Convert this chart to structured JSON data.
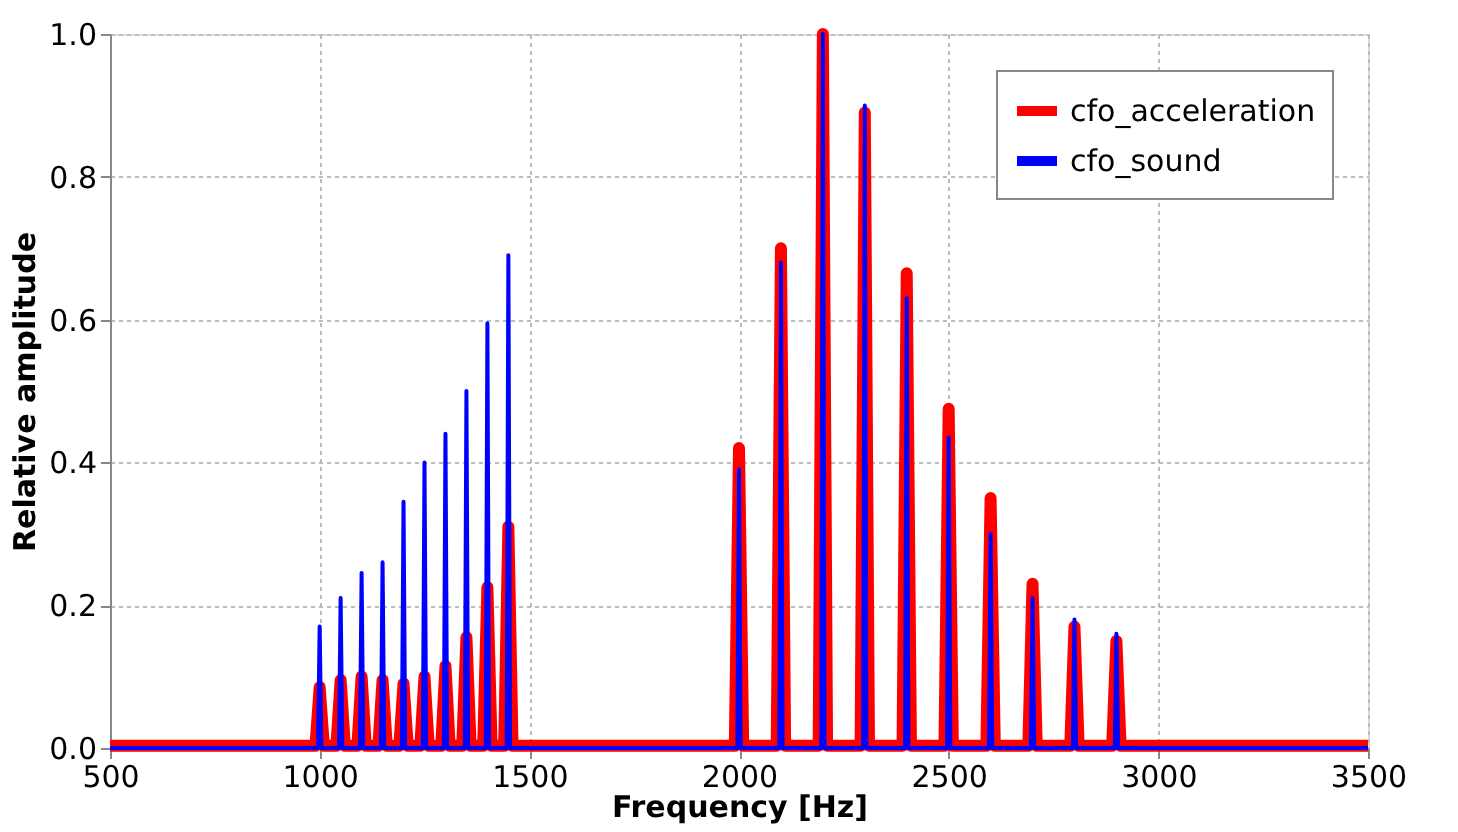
{
  "chart_data": {
    "type": "line",
    "xlabel": "Frequency [Hz]",
    "ylabel": "Relative amplitude",
    "x": [
      500,
      990,
      1000,
      1010,
      1040,
      1050,
      1060,
      1090,
      1100,
      1110,
      1140,
      1150,
      1160,
      1190,
      1200,
      1210,
      1240,
      1250,
      1260,
      1290,
      1300,
      1310,
      1340,
      1350,
      1360,
      1390,
      1400,
      1410,
      1440,
      1450,
      1460,
      1990,
      2000,
      2010,
      2090,
      2100,
      2110,
      2190,
      2200,
      2210,
      2290,
      2300,
      2310,
      2390,
      2400,
      2410,
      2490,
      2500,
      2510,
      2590,
      2600,
      2610,
      2690,
      2700,
      2710,
      2790,
      2800,
      2810,
      2890,
      2900,
      2910,
      3500
    ],
    "series": [
      {
        "name": "cfo_acceleration",
        "color": "#ff0000",
        "values": [
          0.003,
          0.003,
          0.085,
          0.003,
          0.003,
          0.095,
          0.003,
          0.003,
          0.1,
          0.003,
          0.003,
          0.095,
          0.003,
          0.003,
          0.09,
          0.003,
          0.003,
          0.1,
          0.003,
          0.003,
          0.115,
          0.003,
          0.003,
          0.155,
          0.003,
          0.003,
          0.225,
          0.003,
          0.003,
          0.31,
          0.003,
          0.003,
          0.42,
          0.003,
          0.003,
          0.7,
          0.003,
          0.003,
          1.0,
          0.003,
          0.003,
          0.89,
          0.003,
          0.003,
          0.665,
          0.003,
          0.003,
          0.475,
          0.003,
          0.003,
          0.35,
          0.003,
          0.003,
          0.23,
          0.003,
          0.003,
          0.17,
          0.003,
          0.003,
          0.15,
          0.003,
          0.003
        ]
      },
      {
        "name": "cfo_sound",
        "color": "#0000ff",
        "x": [
          500,
          996,
          1000,
          1004,
          1046,
          1050,
          1054,
          1096,
          1100,
          1104,
          1146,
          1150,
          1154,
          1196,
          1200,
          1204,
          1246,
          1250,
          1254,
          1296,
          1300,
          1304,
          1346,
          1350,
          1354,
          1396,
          1400,
          1404,
          1446,
          1450,
          1454,
          1996,
          2000,
          2004,
          2096,
          2100,
          2104,
          2196,
          2200,
          2204,
          2296,
          2300,
          2304,
          2396,
          2400,
          2404,
          2496,
          2500,
          2504,
          2596,
          2600,
          2604,
          2696,
          2700,
          2704,
          2796,
          2800,
          2804,
          2896,
          2900,
          2904,
          3500
        ],
        "values": [
          0.0,
          0.0,
          0.17,
          0.0,
          0.0,
          0.21,
          0.0,
          0.0,
          0.245,
          0.0,
          0.0,
          0.26,
          0.0,
          0.0,
          0.345,
          0.0,
          0.0,
          0.4,
          0.0,
          0.0,
          0.44,
          0.0,
          0.0,
          0.5,
          0.0,
          0.0,
          0.595,
          0.0,
          0.0,
          0.69,
          0.0,
          0.0,
          0.39,
          0.0,
          0.0,
          0.68,
          0.0,
          0.0,
          1.0,
          0.0,
          0.0,
          0.9,
          0.0,
          0.0,
          0.63,
          0.0,
          0.0,
          0.435,
          0.0,
          0.0,
          0.3,
          0.0,
          0.0,
          0.21,
          0.0,
          0.0,
          0.18,
          0.0,
          0.0,
          0.16,
          0.0,
          0.0
        ]
      }
    ],
    "xlim": [
      500,
      3500
    ],
    "xticks": [
      500,
      1000,
      1500,
      2000,
      2500,
      3000,
      3500
    ],
    "ylim": [
      0,
      1.0
    ],
    "yticks": [
      {
        "value": 0,
        "label": "0.0"
      },
      {
        "value": 0.2,
        "label": "0.2"
      },
      {
        "value": 0.4,
        "label": "0.4"
      },
      {
        "value": 0.6,
        "label": "0.6"
      },
      {
        "value": 0.8,
        "label": "0.8"
      },
      {
        "value": 1.0,
        "label": "1.0"
      }
    ],
    "grid": true,
    "legend": "top right",
    "marker": "none",
    "line_style": "solid"
  }
}
